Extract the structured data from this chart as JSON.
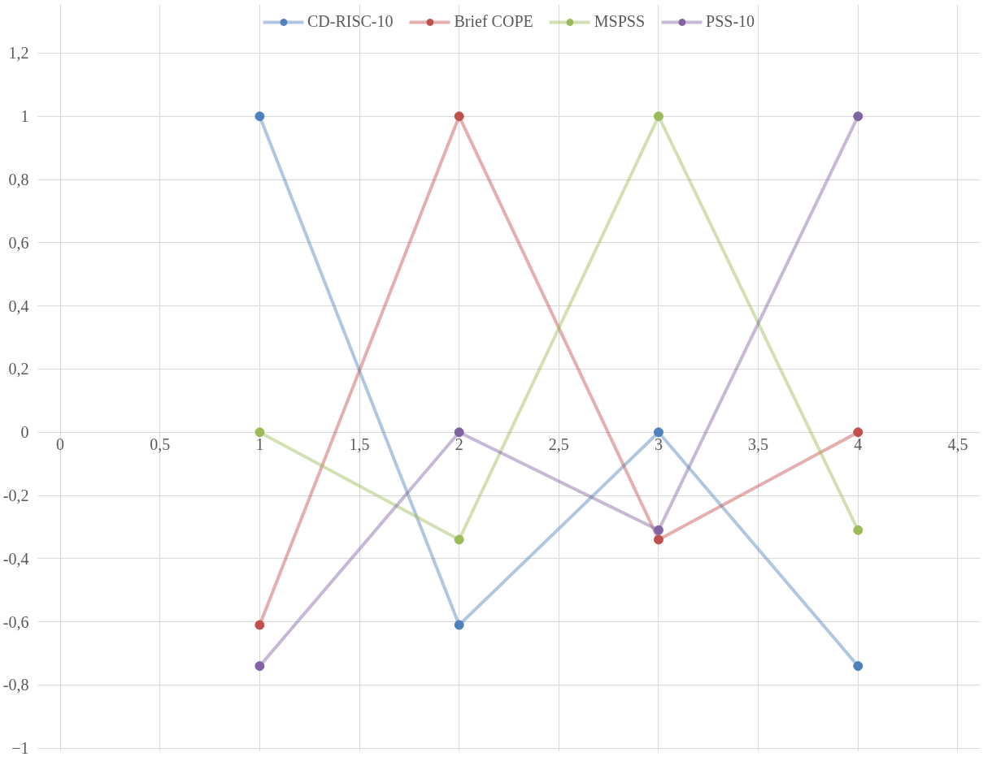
{
  "chart_data": {
    "type": "line",
    "x": [
      1,
      2,
      3,
      4
    ],
    "series": [
      {
        "name": "CD-RISC-10",
        "color": "#4f81bd",
        "values": [
          1,
          -0.61,
          0,
          -0.74
        ]
      },
      {
        "name": "Brief COPE",
        "color": "#c0504d",
        "values": [
          -0.61,
          1,
          -0.34,
          0
        ]
      },
      {
        "name": "MSPSS",
        "color": "#9bbb59",
        "values": [
          0,
          -0.34,
          1,
          -0.31
        ]
      },
      {
        "name": "PSS-10",
        "color": "#8064a2",
        "values": [
          -0.74,
          0,
          -0.31,
          1
        ]
      }
    ],
    "xlim": [
      0,
      4.5
    ],
    "xticks": [
      0,
      {
        "value": 0.5,
        "label": "0,5"
      },
      1,
      {
        "value": 1.5,
        "label": "1,5"
      },
      2,
      {
        "value": 2.5,
        "label": "2,5"
      },
      3,
      {
        "value": 3.5,
        "label": "3,5"
      },
      4,
      {
        "value": 4.5,
        "label": "4,5"
      }
    ],
    "ylim": [
      -1,
      1.2
    ],
    "yticks": [
      -1,
      {
        "value": -0.8,
        "label": "-0,8"
      },
      {
        "value": -0.6,
        "label": "-0,6"
      },
      {
        "value": -0.4,
        "label": "-0,4"
      },
      {
        "value": -0.2,
        "label": "-0,2"
      },
      0,
      {
        "value": 0.2,
        "label": "0,2"
      },
      {
        "value": 0.4,
        "label": "0,4"
      },
      {
        "value": 0.6,
        "label": "0,6"
      },
      {
        "value": 0.8,
        "label": "0,8"
      },
      1,
      {
        "value": 1.2,
        "label": "1,2"
      }
    ],
    "grid": true,
    "legend": "top",
    "marker": "circle",
    "line_style": "solid"
  }
}
